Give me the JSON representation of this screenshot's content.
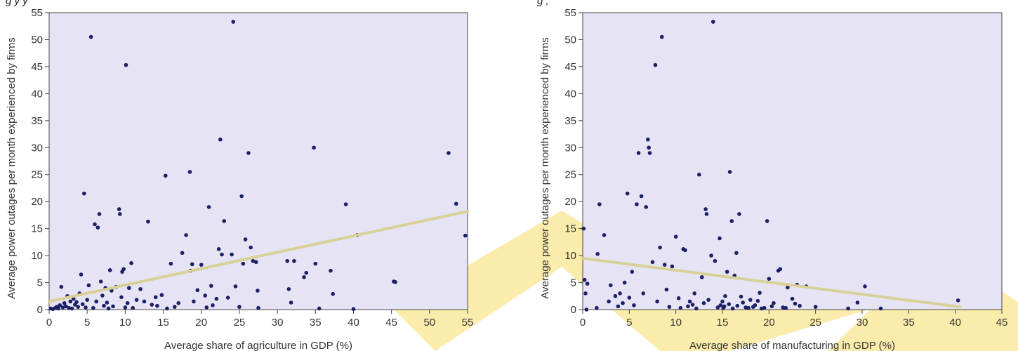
{
  "colors": {
    "plot_bg": "#e6e4f4",
    "point": "#1b1f66",
    "trend": "#d9d098",
    "watermark": "#fbeaa3"
  },
  "chart_data": [
    {
      "type": "scatter",
      "caption": "g                 y                y",
      "xlabel": "Average share of agriculture in GDP (%)",
      "ylabel": "Average power outages per month experienced by firms",
      "xlim": [
        0,
        55
      ],
      "ylim": [
        0,
        55
      ],
      "xticks": [
        0,
        5,
        10,
        15,
        20,
        25,
        30,
        35,
        40,
        45,
        50,
        55
      ],
      "yticks": [
        0,
        5,
        10,
        15,
        20,
        25,
        30,
        35,
        40,
        45,
        50,
        55
      ],
      "trend": [
        [
          0,
          1.5
        ],
        [
          55,
          18.2
        ]
      ],
      "points": [
        [
          0.2,
          0.2
        ],
        [
          0.5,
          0.1
        ],
        [
          0.8,
          0.3
        ],
        [
          1,
          0.5
        ],
        [
          1.2,
          0.2
        ],
        [
          1.4,
          0.8
        ],
        [
          1.6,
          4.2
        ],
        [
          1.8,
          0.4
        ],
        [
          2,
          1.2
        ],
        [
          2.2,
          0.6
        ],
        [
          2.4,
          2.5
        ],
        [
          2.6,
          0.3
        ],
        [
          2.8,
          1.5
        ],
        [
          3,
          0.2
        ],
        [
          3.2,
          2
        ],
        [
          3.4,
          0.9
        ],
        [
          3.6,
          1.4
        ],
        [
          3.8,
          0.5
        ],
        [
          4,
          3
        ],
        [
          4.2,
          6.5
        ],
        [
          4.4,
          1
        ],
        [
          4.6,
          21.5
        ],
        [
          4.8,
          0.4
        ],
        [
          5,
          1.8
        ],
        [
          5.2,
          4.5
        ],
        [
          5.5,
          50.5
        ],
        [
          5.8,
          0.3
        ],
        [
          6,
          15.8
        ],
        [
          6.2,
          1.5
        ],
        [
          6.4,
          15.2
        ],
        [
          6.6,
          17.7
        ],
        [
          6.8,
          5.2
        ],
        [
          7,
          2.6
        ],
        [
          7.2,
          0.7
        ],
        [
          7.4,
          4
        ],
        [
          7.6,
          1.3
        ],
        [
          7.8,
          0.2
        ],
        [
          8,
          7.3
        ],
        [
          8.2,
          3.5
        ],
        [
          8.4,
          0.6
        ],
        [
          8.8,
          4.2
        ],
        [
          9.2,
          18.6
        ],
        [
          9.3,
          17.7
        ],
        [
          9.5,
          2.3
        ],
        [
          9.6,
          7
        ],
        [
          9.8,
          7.5
        ],
        [
          10,
          0.4
        ],
        [
          10.1,
          45.3
        ],
        [
          10.3,
          1.2
        ],
        [
          10.5,
          4
        ],
        [
          10.8,
          8.6
        ],
        [
          11,
          0.3
        ],
        [
          11.5,
          1.8
        ],
        [
          12,
          3.8
        ],
        [
          12.5,
          1.5
        ],
        [
          13,
          16.3
        ],
        [
          13.5,
          0.9
        ],
        [
          14,
          2.3
        ],
        [
          14.2,
          0.7
        ],
        [
          14.8,
          2.7
        ],
        [
          15.3,
          24.8
        ],
        [
          15.5,
          0.2
        ],
        [
          16,
          8.5
        ],
        [
          16.5,
          0.5
        ],
        [
          17,
          1.2
        ],
        [
          17.5,
          10.5
        ],
        [
          18,
          13.8
        ],
        [
          18.5,
          25.5
        ],
        [
          18.6,
          7.2
        ],
        [
          18.8,
          8.4
        ],
        [
          19,
          1.5
        ],
        [
          19.5,
          3.6
        ],
        [
          20,
          8.3
        ],
        [
          20.5,
          2.6
        ],
        [
          20.7,
          0.4
        ],
        [
          21,
          19
        ],
        [
          21.3,
          4.4
        ],
        [
          21.5,
          0.8
        ],
        [
          22,
          2
        ],
        [
          22.3,
          11.2
        ],
        [
          22.5,
          31.5
        ],
        [
          22.7,
          10.2
        ],
        [
          23,
          16.4
        ],
        [
          23.5,
          2.2
        ],
        [
          24,
          10.2
        ],
        [
          24.2,
          53.3
        ],
        [
          24.5,
          4.3
        ],
        [
          25,
          0.5
        ],
        [
          25.3,
          21
        ],
        [
          25.5,
          8.5
        ],
        [
          25.8,
          13
        ],
        [
          26.2,
          29
        ],
        [
          26.5,
          11.5
        ],
        [
          26.8,
          9
        ],
        [
          27.2,
          8.8
        ],
        [
          27.4,
          3.5
        ],
        [
          27.5,
          0.3
        ],
        [
          31.3,
          9
        ],
        [
          31.5,
          3.8
        ],
        [
          31.8,
          1.3
        ],
        [
          32.2,
          9
        ],
        [
          33.5,
          6
        ],
        [
          33.8,
          6.8
        ],
        [
          34.8,
          30
        ],
        [
          35,
          8.5
        ],
        [
          35.5,
          0.2
        ],
        [
          37,
          7.2
        ],
        [
          37.3,
          2.9
        ],
        [
          39,
          19.5
        ],
        [
          40,
          0.1
        ],
        [
          40.5,
          13.8
        ],
        [
          45.3,
          5.2
        ],
        [
          45.5,
          5.1
        ],
        [
          52.5,
          29
        ],
        [
          53.5,
          19.6
        ],
        [
          54.7,
          13.7
        ]
      ]
    },
    {
      "type": "scatter",
      "caption": "g             ,",
      "xlabel": "Average share of manufacturing in GDP (%)",
      "ylabel": "Average power outages per month experienced by firms",
      "xlim": [
        0,
        45
      ],
      "ylim": [
        0,
        55
      ],
      "xticks": [
        0,
        5,
        10,
        15,
        20,
        25,
        30,
        35,
        40,
        45
      ],
      "yticks": [
        0,
        5,
        10,
        15,
        20,
        25,
        30,
        35,
        40,
        45,
        50,
        55
      ],
      "trend": [
        [
          0,
          9.5
        ],
        [
          40.5,
          0.5
        ]
      ],
      "points": [
        [
          0.1,
          15
        ],
        [
          0.2,
          5.5
        ],
        [
          0.3,
          3
        ],
        [
          0.4,
          0
        ],
        [
          0.5,
          4.8
        ],
        [
          1.5,
          0.3
        ],
        [
          1.6,
          10.3
        ],
        [
          1.8,
          19.5
        ],
        [
          2.3,
          13.8
        ],
        [
          2.8,
          1.5
        ],
        [
          3,
          4.5
        ],
        [
          3.5,
          2.5
        ],
        [
          3.8,
          0.6
        ],
        [
          4,
          3
        ],
        [
          4.3,
          1.2
        ],
        [
          4.5,
          5
        ],
        [
          4.8,
          21.5
        ],
        [
          5,
          2.2
        ],
        [
          5.3,
          7
        ],
        [
          5.5,
          0.8
        ],
        [
          5.8,
          19.5
        ],
        [
          6,
          29
        ],
        [
          6.3,
          21
        ],
        [
          6.5,
          3
        ],
        [
          6.8,
          19
        ],
        [
          7,
          31.5
        ],
        [
          7.1,
          30
        ],
        [
          7.2,
          29
        ],
        [
          7.5,
          8.8
        ],
        [
          7.8,
          45.3
        ],
        [
          8,
          1.5
        ],
        [
          8.3,
          11.5
        ],
        [
          8.5,
          50.5
        ],
        [
          8.8,
          8.3
        ],
        [
          9,
          3.7
        ],
        [
          9.3,
          0.5
        ],
        [
          9.6,
          8
        ],
        [
          10,
          13.5
        ],
        [
          10.3,
          2.1
        ],
        [
          10.8,
          11.2
        ],
        [
          11,
          11
        ],
        [
          11.3,
          0.6
        ],
        [
          11.5,
          1.5
        ],
        [
          12,
          3
        ],
        [
          12.5,
          25
        ],
        [
          12.8,
          6
        ],
        [
          13.2,
          18.6
        ],
        [
          13.3,
          17.7
        ],
        [
          13.5,
          1.8
        ],
        [
          13.8,
          10
        ],
        [
          14,
          53.3
        ],
        [
          14.2,
          9
        ],
        [
          14.5,
          0.4
        ],
        [
          14.7,
          13.2
        ],
        [
          15,
          1.5
        ],
        [
          15.2,
          0.6
        ],
        [
          15.5,
          7
        ],
        [
          15.8,
          25.5
        ],
        [
          16,
          16.4
        ],
        [
          16.3,
          6.3
        ],
        [
          16.5,
          10.5
        ],
        [
          16.8,
          17.7
        ],
        [
          17,
          2.4
        ],
        [
          17.5,
          0.4
        ],
        [
          18,
          1.8
        ],
        [
          18.5,
          0.8
        ],
        [
          19,
          3.1
        ],
        [
          19.5,
          0.3
        ],
        [
          19.8,
          16.4
        ],
        [
          20,
          5.7
        ],
        [
          20.5,
          1.2
        ],
        [
          21,
          7.2
        ],
        [
          21.2,
          7.5
        ],
        [
          21.5,
          0.4
        ],
        [
          22,
          4.1
        ],
        [
          22.5,
          2
        ],
        [
          23,
          4.6
        ],
        [
          23.3,
          0.7
        ],
        [
          24,
          4.3
        ],
        [
          25,
          0.5
        ],
        [
          28.5,
          0.2
        ],
        [
          29.5,
          1.3
        ],
        [
          30.3,
          4.3
        ],
        [
          32,
          0.2
        ],
        [
          40.3,
          1.7
        ],
        [
          10.5,
          0.3
        ],
        [
          11.8,
          0.9
        ],
        [
          12.2,
          0.2
        ],
        [
          13,
          1.2
        ],
        [
          14.8,
          0.8
        ],
        [
          15.1,
          0.3
        ],
        [
          15.3,
          2.5
        ],
        [
          15.7,
          1.0
        ],
        [
          16.1,
          0.2
        ],
        [
          16.6,
          0.7
        ],
        [
          17.2,
          1.3
        ],
        [
          17.8,
          0.3
        ],
        [
          18.3,
          0.5
        ],
        [
          18.8,
          1.6
        ],
        [
          19.2,
          0.2
        ],
        [
          20.3,
          0.6
        ],
        [
          21.8,
          0.3
        ],
        [
          22.8,
          1.1
        ]
      ]
    }
  ]
}
